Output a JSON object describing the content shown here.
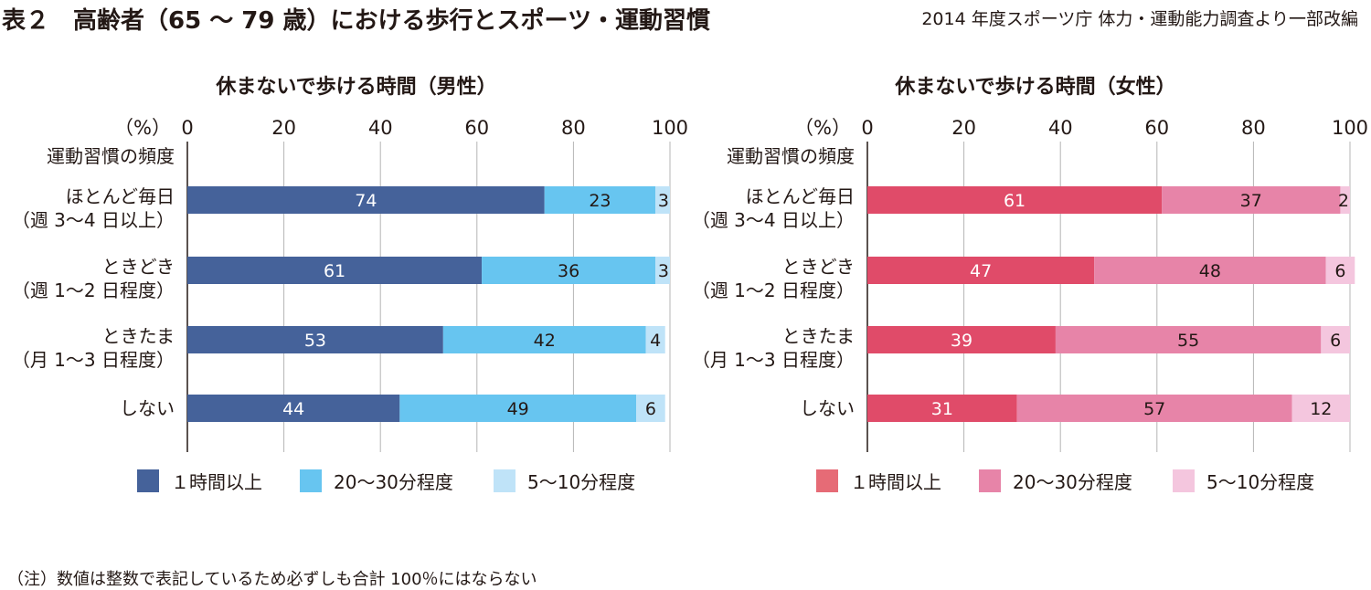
{
  "header": {
    "title": "表２　高齢者（65 〜 79 歳）における歩行とスポーツ・運動習慣",
    "source": "2014 年度スポーツ庁 体力・運動能力調査より一部改編"
  },
  "note": "（注）数値は整数で表記しているため必ずしも合計 100％にはならない",
  "chart_data": [
    {
      "type": "bar",
      "orientation": "horizontal",
      "stacked": true,
      "title": "休まないで歩ける時間（男性）",
      "xlabel": "（%）",
      "ylabel": "運動習慣の頻度",
      "xlim": [
        0,
        100
      ],
      "xticks": [
        "0",
        "20",
        "40",
        "60",
        "80",
        "100"
      ],
      "grid": true,
      "legend_position": "bottom",
      "categories": [
        [
          "ほとんど毎日",
          "（週 3〜4 日以上）"
        ],
        [
          "ときどき",
          "（週 1〜2 日程度）"
        ],
        [
          "ときたま",
          "（月 1〜3 日程度）"
        ],
        [
          "しない"
        ]
      ],
      "series": [
        {
          "name": "１時間以上",
          "color": "#45629a",
          "label_color": "#ffffff",
          "values": [
            74,
            61,
            53,
            44
          ]
        },
        {
          "name": "20〜30分程度",
          "color": "#67c5f0",
          "label_color": "#231815",
          "values": [
            23,
            36,
            42,
            49
          ]
        },
        {
          "name": "5〜10分程度",
          "color": "#bfe3f8",
          "label_color": "#231815",
          "values": [
            3,
            3,
            4,
            6
          ]
        }
      ]
    },
    {
      "type": "bar",
      "orientation": "horizontal",
      "stacked": true,
      "title": "休まないで歩ける時間（女性）",
      "xlabel": "（%）",
      "ylabel": "運動習慣の頻度",
      "xlim": [
        0,
        100
      ],
      "xticks": [
        "0",
        "20",
        "40",
        "60",
        "80",
        "100"
      ],
      "grid": true,
      "legend_position": "bottom",
      "categories": [
        [
          "ほとんど毎日",
          "（週 3〜4 日以上）"
        ],
        [
          "ときどき",
          "（週 1〜2 日程度）"
        ],
        [
          "ときたま",
          "（月 1〜3 日程度）"
        ],
        [
          "しない"
        ]
      ],
      "series": [
        {
          "name": "１時間以上",
          "color": "#e04b69",
          "legend_color": "#e66b76",
          "label_color": "#ffffff",
          "values": [
            61,
            47,
            39,
            31
          ]
        },
        {
          "name": "20〜30分程度",
          "color": "#e784a8",
          "label_color": "#231815",
          "values": [
            37,
            48,
            55,
            57
          ]
        },
        {
          "name": "5〜10分程度",
          "color": "#f4c6de",
          "label_color": "#231815",
          "values": [
            2,
            6,
            6,
            12
          ]
        }
      ]
    }
  ]
}
